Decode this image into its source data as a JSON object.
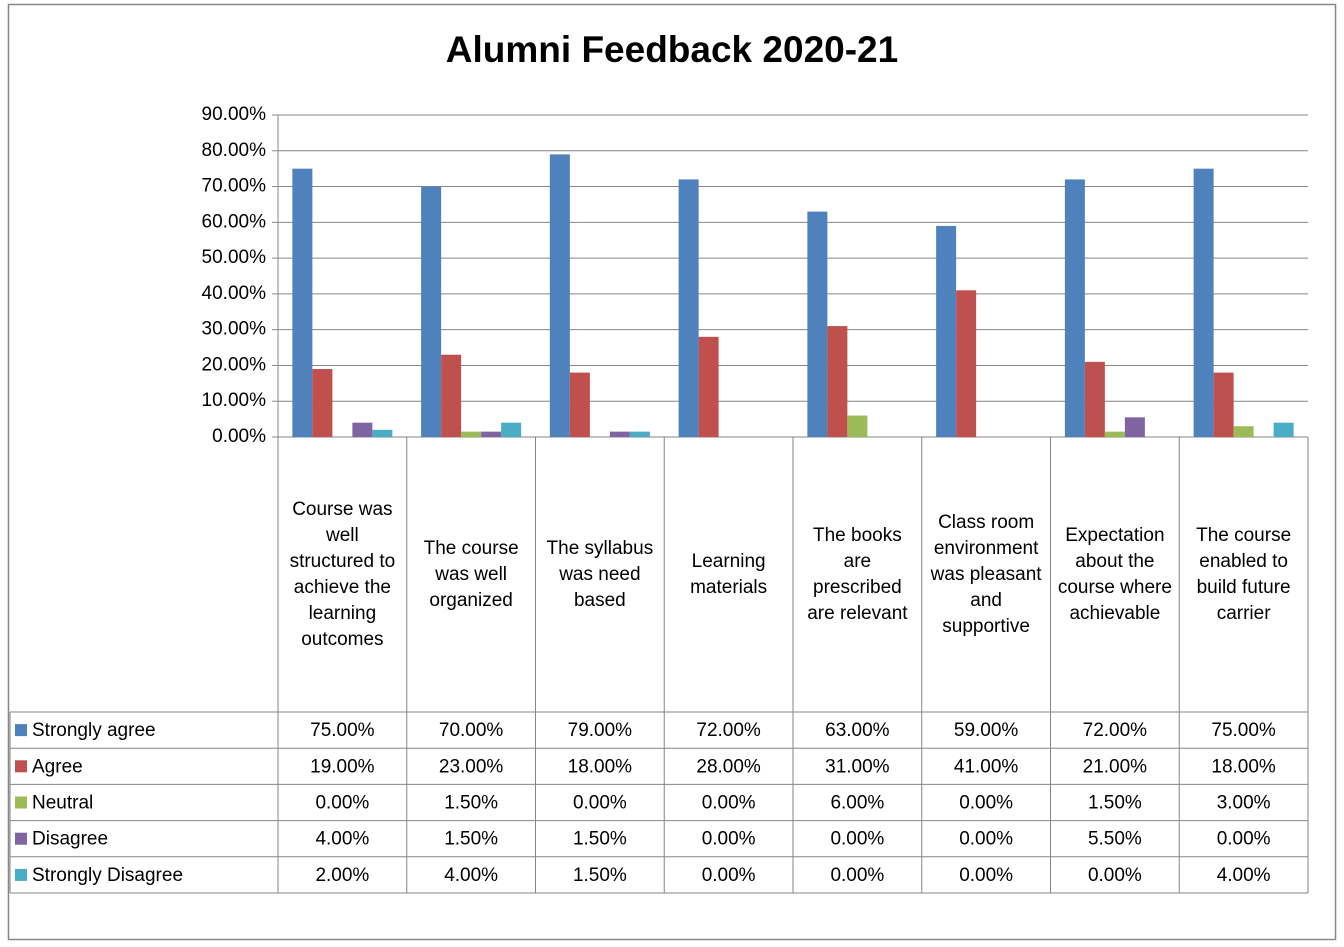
{
  "chart_data": {
    "type": "bar",
    "title": "Alumni Feedback 2020-21",
    "categories": [
      "Course was well structured to achieve the learning outcomes",
      "The course was well organized",
      "The syllabus was need based",
      "Learning materials",
      "The books are prescribed are relevant",
      "Class room environment was pleasant and supportive",
      "Expectation about the course where achievable",
      "The course enabled to build future carrier"
    ],
    "series": [
      {
        "name": "Strongly agree",
        "color": "#4f81bd",
        "values": [
          75,
          70,
          79,
          72,
          63,
          59,
          72,
          75
        ],
        "value_labels": [
          "75.00%",
          "70.00%",
          "79.00%",
          "72.00%",
          "63.00%",
          "59.00%",
          "72.00%",
          "75.00%"
        ]
      },
      {
        "name": "Agree",
        "color": "#c0504d",
        "values": [
          19,
          23,
          18,
          28,
          31,
          41,
          21,
          18
        ],
        "value_labels": [
          "19.00%",
          "23.00%",
          "18.00%",
          "28.00%",
          "31.00%",
          "41.00%",
          "21.00%",
          "18.00%"
        ]
      },
      {
        "name": "Neutral",
        "color": "#9bbb59",
        "values": [
          0,
          1.5,
          0,
          0,
          6,
          0,
          1.5,
          3
        ],
        "value_labels": [
          "0.00%",
          "1.50%",
          "0.00%",
          "0.00%",
          "6.00%",
          "0.00%",
          "1.50%",
          "3.00%"
        ]
      },
      {
        "name": "Disagree",
        "color": "#8064a2",
        "values": [
          4,
          1.5,
          1.5,
          0,
          0,
          0,
          5.5,
          0
        ],
        "value_labels": [
          "4.00%",
          "1.50%",
          "1.50%",
          "0.00%",
          "0.00%",
          "0.00%",
          "5.50%",
          "0.00%"
        ]
      },
      {
        "name": "Strongly Disagree",
        "color": "#4bacc6",
        "values": [
          2,
          4,
          1.5,
          0,
          0,
          0,
          0,
          4
        ],
        "value_labels": [
          "2.00%",
          "4.00%",
          "1.50%",
          "0.00%",
          "0.00%",
          "0.00%",
          "0.00%",
          "4.00%"
        ]
      }
    ],
    "ylim": [
      0,
      90
    ],
    "yticks": [
      {
        "value": 0,
        "label": "0.00%"
      },
      {
        "value": 10,
        "label": "10.00%"
      },
      {
        "value": 20,
        "label": "20.00%"
      },
      {
        "value": 30,
        "label": "30.00%"
      },
      {
        "value": 40,
        "label": "40.00%"
      },
      {
        "value": 50,
        "label": "50.00%"
      },
      {
        "value": 60,
        "label": "60.00%"
      },
      {
        "value": 70,
        "label": "70.00%"
      },
      {
        "value": 80,
        "label": "80.00%"
      },
      {
        "value": 90,
        "label": "90.00%"
      }
    ],
    "grid": true,
    "data_table": true
  }
}
